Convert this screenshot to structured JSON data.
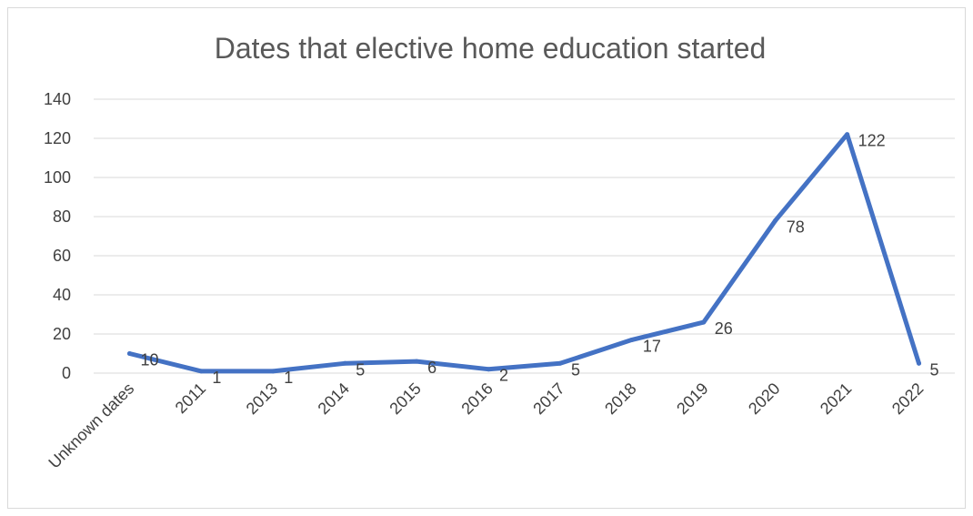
{
  "chart_data": {
    "type": "line",
    "title": "Dates that elective home education started",
    "xlabel": "",
    "ylabel": "",
    "categories": [
      "Unknown dates",
      "2011",
      "2013",
      "2014",
      "2015",
      "2016",
      "2017",
      "2018",
      "2019",
      "2020",
      "2021",
      "2022"
    ],
    "series": [
      {
        "values": [
          10,
          1,
          1,
          5,
          6,
          2,
          5,
          17,
          26,
          78,
          122,
          5
        ]
      }
    ],
    "ylim": [
      0,
      140
    ],
    "yticks": [
      0,
      20,
      40,
      60,
      80,
      100,
      120,
      140
    ],
    "grid": true,
    "legend": "none",
    "data_labels": true,
    "line_color": "#4472c4"
  }
}
